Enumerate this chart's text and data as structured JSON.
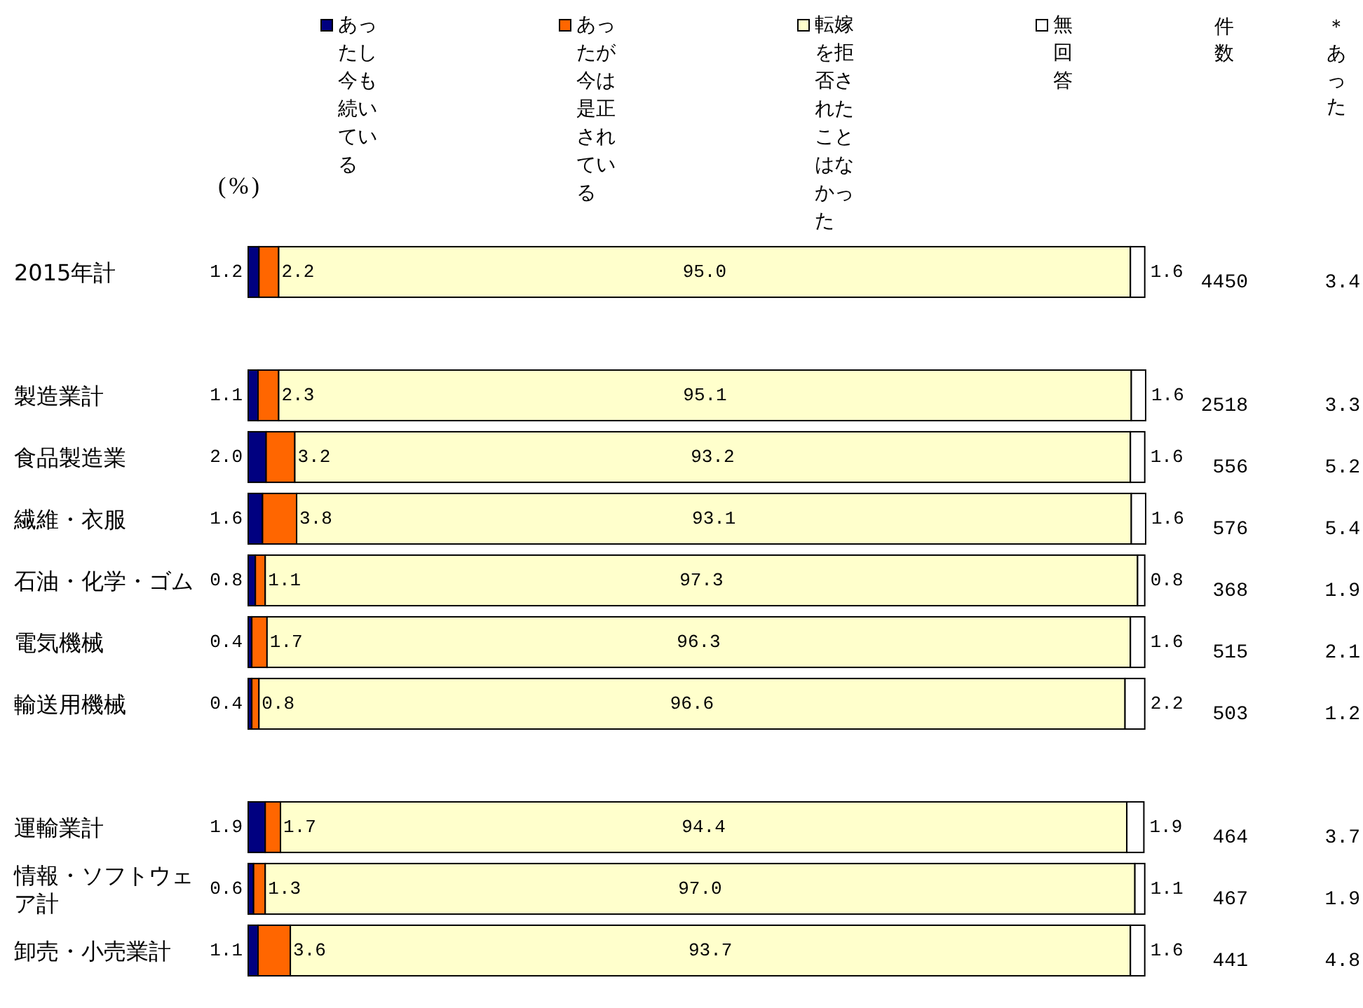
{
  "chart_data": {
    "type": "bar",
    "orientation": "horizontal",
    "stacked": true,
    "xlabel": "(%)",
    "categories": [
      "2015年計",
      null,
      "製造業計",
      "食品製造業",
      "繊維・衣服",
      "石油・化学・ゴム",
      "電気機械",
      "輸送用機械",
      null,
      "運輸業計",
      "情報・ソフトウェア計",
      "卸売・小売業計"
    ],
    "series": [
      {
        "name": "あったし今も続いている",
        "color": "#000080",
        "values": [
          1.2,
          null,
          1.1,
          2.0,
          1.6,
          0.8,
          0.4,
          0.4,
          null,
          1.9,
          0.6,
          1.1
        ],
        "value_labels": [
          "1.2",
          null,
          "1.1",
          "2.0",
          "1.6",
          "0.8",
          "0.4",
          "0.4",
          null,
          "1.9",
          "0.6",
          "1.1"
        ]
      },
      {
        "name": "あったが今は是正されている",
        "color": "#ff6600",
        "values": [
          2.2,
          null,
          2.3,
          3.2,
          3.8,
          1.1,
          1.7,
          0.8,
          null,
          1.7,
          1.3,
          3.6
        ],
        "value_labels": [
          "2.2",
          null,
          "2.3",
          "3.2",
          "3.8",
          "1.1",
          "1.7",
          "0.8",
          null,
          "1.7",
          "1.3",
          "3.6"
        ]
      },
      {
        "name": "転嫁を拒否されたことはなかった",
        "color": "#ffffcc",
        "values": [
          95.0,
          null,
          95.1,
          93.2,
          93.1,
          97.3,
          96.3,
          96.6,
          null,
          94.4,
          97.0,
          93.7
        ],
        "value_labels": [
          "95.0",
          null,
          "95.1",
          "93.2",
          "93.1",
          "97.3",
          "96.3",
          "96.6",
          null,
          "94.4",
          "97.0",
          "93.7"
        ]
      },
      {
        "name": "無回答",
        "color": "#ffffff",
        "values": [
          1.6,
          null,
          1.6,
          1.6,
          1.6,
          0.8,
          1.6,
          2.2,
          null,
          1.9,
          1.1,
          1.6
        ],
        "value_labels": [
          "1.6",
          null,
          "1.6",
          "1.6",
          "1.6",
          "0.8",
          "1.6",
          "2.2",
          null,
          "1.9",
          "1.1",
          "1.6"
        ]
      }
    ],
    "xlim": [
      0,
      100.1
    ],
    "legend": "top",
    "tick_labels": "y",
    "annotations": [
      "件数",
      "＊あった",
      "4450",
      "3.4",
      "2518",
      "3.3",
      "556",
      "5.2",
      "576",
      "5.4",
      "368",
      "1.9",
      "515",
      "2.1",
      "503",
      "1.2",
      "464",
      "3.7",
      "467",
      "1.9",
      "441",
      "4.8"
    ]
  }
}
